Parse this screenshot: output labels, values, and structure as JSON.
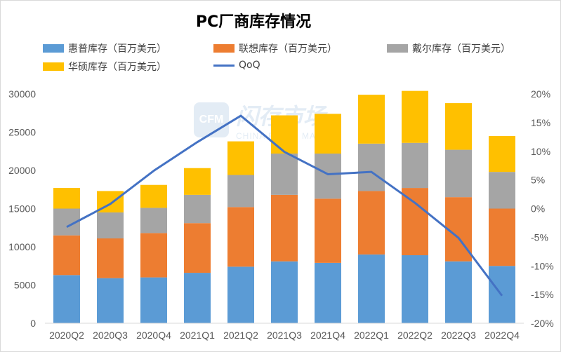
{
  "title": "PC厂商库存情况",
  "watermark": {
    "cn": "闪存市场",
    "en": "CHINA FLASH MARKET",
    "logo": "CFM"
  },
  "chart_data": {
    "type": "bar",
    "stacked": true,
    "categories": [
      "2020Q2",
      "2020Q3",
      "2020Q4",
      "2021Q1",
      "2021Q2",
      "2021Q3",
      "2021Q4",
      "2022Q1",
      "2022Q2",
      "2022Q3",
      "2022Q4"
    ],
    "series": [
      {
        "name": "惠普库存（百万美元）",
        "color": "#5b9bd5",
        "values": [
          6300,
          5900,
          6000,
          6600,
          7400,
          8100,
          7900,
          9000,
          8900,
          8100,
          7500
        ]
      },
      {
        "name": "联想库存（百万美元）",
        "color": "#ed7d31",
        "values": [
          5200,
          5200,
          5800,
          6500,
          7800,
          8700,
          8400,
          8300,
          8800,
          8400,
          7500
        ]
      },
      {
        "name": "戴尔库存（百万美元）",
        "color": "#a5a5a5",
        "values": [
          3500,
          3400,
          3300,
          3700,
          4200,
          5400,
          5900,
          6200,
          5900,
          6200,
          4800
        ]
      },
      {
        "name": "华硕库存（百万美元）",
        "color": "#ffc000",
        "values": [
          2700,
          2800,
          3000,
          3500,
          4400,
          5000,
          5200,
          6400,
          6800,
          6100,
          4700
        ]
      }
    ],
    "line_series": {
      "name": "QoQ",
      "color": "#4472c4",
      "values": [
        -3.2,
        0.8,
        6.6,
        11.6,
        16.2,
        9.9,
        6.0,
        6.4,
        1.0,
        -5.1,
        -15.2
      ]
    },
    "y_left": {
      "min": 0,
      "max": 30000,
      "ticks": [
        "0",
        "5000",
        "10000",
        "15000",
        "20000",
        "25000",
        "30000"
      ]
    },
    "y_right": {
      "min": -20,
      "max": 20,
      "ticks": [
        "-20%",
        "-15%",
        "-10%",
        "-5%",
        "0%",
        "5%",
        "10%",
        "15%",
        "20%"
      ]
    },
    "xlabel": "",
    "ylabel": "",
    "grid": false,
    "legend": "top"
  }
}
